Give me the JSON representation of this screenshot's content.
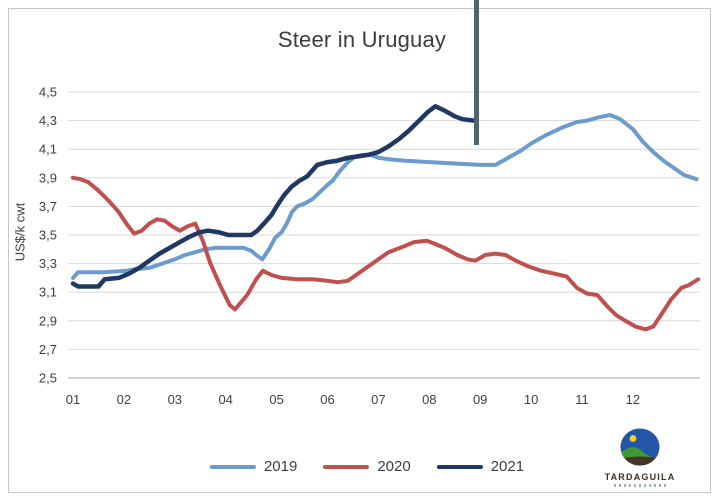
{
  "chart_data": {
    "type": "line",
    "title": "Steer in Uruguay",
    "ylabel": "US$/k cwt",
    "ylim": [
      2.5,
      4.5
    ],
    "xlim_months": [
      1,
      13.35
    ],
    "grid": true,
    "legend_position": "bottom",
    "decimal_separator": ",",
    "yticks": [
      {
        "value": 4.5,
        "label": "4,5"
      },
      {
        "value": 4.3,
        "label": "4,3"
      },
      {
        "value": 4.1,
        "label": "4,1"
      },
      {
        "value": 3.9,
        "label": "3,9"
      },
      {
        "value": 3.7,
        "label": "3,7"
      },
      {
        "value": 3.5,
        "label": "3,5"
      },
      {
        "value": 3.3,
        "label": "3,3"
      },
      {
        "value": 3.1,
        "label": "3,1"
      },
      {
        "value": 2.9,
        "label": "2,9"
      },
      {
        "value": 2.7,
        "label": "2,7"
      },
      {
        "value": 2.5,
        "label": "2,5"
      }
    ],
    "xticks": [
      "01",
      "02",
      "03",
      "04",
      "05",
      "06",
      "07",
      "08",
      "09",
      "10",
      "11",
      "12"
    ],
    "series": [
      {
        "name": "2019",
        "color": "#6c9bce",
        "width": 4,
        "points": [
          [
            1.0,
            3.2
          ],
          [
            1.1,
            3.24
          ],
          [
            1.6,
            3.24
          ],
          [
            2.05,
            3.25
          ],
          [
            2.2,
            3.26
          ],
          [
            2.5,
            3.27
          ],
          [
            2.75,
            3.3
          ],
          [
            3.0,
            3.33
          ],
          [
            3.2,
            3.36
          ],
          [
            3.4,
            3.38
          ],
          [
            3.6,
            3.4
          ],
          [
            3.8,
            3.41
          ],
          [
            4.1,
            3.41
          ],
          [
            4.35,
            3.41
          ],
          [
            4.5,
            3.39
          ],
          [
            4.6,
            3.36
          ],
          [
            4.72,
            3.33
          ],
          [
            4.85,
            3.4
          ],
          [
            4.97,
            3.48
          ],
          [
            5.1,
            3.52
          ],
          [
            5.2,
            3.58
          ],
          [
            5.3,
            3.66
          ],
          [
            5.4,
            3.7
          ],
          [
            5.55,
            3.72
          ],
          [
            5.7,
            3.75
          ],
          [
            5.85,
            3.8
          ],
          [
            6.0,
            3.85
          ],
          [
            6.1,
            3.88
          ],
          [
            6.25,
            3.95
          ],
          [
            6.4,
            4.01
          ],
          [
            6.55,
            4.05
          ],
          [
            6.7,
            4.06
          ],
          [
            6.85,
            4.06
          ],
          [
            7.0,
            4.04
          ],
          [
            7.2,
            4.03
          ],
          [
            7.5,
            4.02
          ],
          [
            8.0,
            4.01
          ],
          [
            8.5,
            4.0
          ],
          [
            9.0,
            3.99
          ],
          [
            9.3,
            3.99
          ],
          [
            9.5,
            4.03
          ],
          [
            9.8,
            4.09
          ],
          [
            10.0,
            4.14
          ],
          [
            10.3,
            4.2
          ],
          [
            10.6,
            4.25
          ],
          [
            10.9,
            4.29
          ],
          [
            11.1,
            4.3
          ],
          [
            11.3,
            4.32
          ],
          [
            11.55,
            4.34
          ],
          [
            11.75,
            4.31
          ],
          [
            12.0,
            4.24
          ],
          [
            12.2,
            4.15
          ],
          [
            12.4,
            4.08
          ],
          [
            12.6,
            4.02
          ],
          [
            12.8,
            3.97
          ],
          [
            13.0,
            3.92
          ],
          [
            13.25,
            3.89
          ]
        ]
      },
      {
        "name": "2020",
        "color": "#c0504d",
        "width": 4,
        "points": [
          [
            1.0,
            3.9
          ],
          [
            1.15,
            3.89
          ],
          [
            1.3,
            3.87
          ],
          [
            1.5,
            3.81
          ],
          [
            1.7,
            3.74
          ],
          [
            1.9,
            3.66
          ],
          [
            2.05,
            3.58
          ],
          [
            2.2,
            3.51
          ],
          [
            2.35,
            3.53
          ],
          [
            2.5,
            3.58
          ],
          [
            2.65,
            3.61
          ],
          [
            2.8,
            3.6
          ],
          [
            2.95,
            3.56
          ],
          [
            3.1,
            3.53
          ],
          [
            3.25,
            3.56
          ],
          [
            3.4,
            3.58
          ],
          [
            3.55,
            3.46
          ],
          [
            3.7,
            3.3
          ],
          [
            3.9,
            3.14
          ],
          [
            4.08,
            3.01
          ],
          [
            4.18,
            2.98
          ],
          [
            4.42,
            3.08
          ],
          [
            4.6,
            3.19
          ],
          [
            4.73,
            3.25
          ],
          [
            4.9,
            3.22
          ],
          [
            5.1,
            3.2
          ],
          [
            5.4,
            3.19
          ],
          [
            5.7,
            3.19
          ],
          [
            6.0,
            3.18
          ],
          [
            6.2,
            3.17
          ],
          [
            6.4,
            3.18
          ],
          [
            6.6,
            3.23
          ],
          [
            6.8,
            3.28
          ],
          [
            7.0,
            3.33
          ],
          [
            7.2,
            3.38
          ],
          [
            7.5,
            3.42
          ],
          [
            7.7,
            3.45
          ],
          [
            7.95,
            3.46
          ],
          [
            8.1,
            3.44
          ],
          [
            8.3,
            3.41
          ],
          [
            8.55,
            3.36
          ],
          [
            8.75,
            3.33
          ],
          [
            8.9,
            3.32
          ],
          [
            9.1,
            3.36
          ],
          [
            9.3,
            3.37
          ],
          [
            9.5,
            3.36
          ],
          [
            9.7,
            3.32
          ],
          [
            9.95,
            3.28
          ],
          [
            10.2,
            3.25
          ],
          [
            10.45,
            3.23
          ],
          [
            10.7,
            3.21
          ],
          [
            10.9,
            3.13
          ],
          [
            11.1,
            3.09
          ],
          [
            11.3,
            3.08
          ],
          [
            11.5,
            3.0
          ],
          [
            11.67,
            2.94
          ],
          [
            11.85,
            2.9
          ],
          [
            12.05,
            2.86
          ],
          [
            12.25,
            2.84
          ],
          [
            12.4,
            2.86
          ],
          [
            12.55,
            2.94
          ],
          [
            12.75,
            3.05
          ],
          [
            12.95,
            3.13
          ],
          [
            13.1,
            3.15
          ],
          [
            13.28,
            3.19
          ]
        ]
      },
      {
        "name": "2021",
        "color": "#1f3864",
        "width": 4.5,
        "points": [
          [
            1.0,
            3.16
          ],
          [
            1.1,
            3.14
          ],
          [
            1.5,
            3.14
          ],
          [
            1.62,
            3.19
          ],
          [
            1.9,
            3.2
          ],
          [
            2.1,
            3.23
          ],
          [
            2.3,
            3.27
          ],
          [
            2.5,
            3.32
          ],
          [
            2.7,
            3.37
          ],
          [
            2.9,
            3.41
          ],
          [
            3.1,
            3.45
          ],
          [
            3.3,
            3.49
          ],
          [
            3.5,
            3.52
          ],
          [
            3.65,
            3.53
          ],
          [
            3.85,
            3.52
          ],
          [
            4.05,
            3.5
          ],
          [
            4.5,
            3.5
          ],
          [
            4.62,
            3.53
          ],
          [
            4.75,
            3.58
          ],
          [
            4.9,
            3.64
          ],
          [
            5.0,
            3.7
          ],
          [
            5.15,
            3.78
          ],
          [
            5.3,
            3.84
          ],
          [
            5.45,
            3.88
          ],
          [
            5.6,
            3.91
          ],
          [
            5.7,
            3.95
          ],
          [
            5.8,
            3.99
          ],
          [
            6.0,
            4.01
          ],
          [
            6.2,
            4.02
          ],
          [
            6.4,
            4.04
          ],
          [
            6.6,
            4.05
          ],
          [
            6.8,
            4.06
          ],
          [
            7.0,
            4.08
          ],
          [
            7.2,
            4.12
          ],
          [
            7.4,
            4.17
          ],
          [
            7.6,
            4.23
          ],
          [
            7.8,
            4.3
          ],
          [
            7.97,
            4.36
          ],
          [
            8.12,
            4.4
          ],
          [
            8.3,
            4.37
          ],
          [
            8.5,
            4.33
          ],
          [
            8.65,
            4.31
          ],
          [
            8.88,
            4.3
          ]
        ]
      }
    ]
  },
  "annotation": {
    "type": "vertical-line",
    "x_month": 8.93,
    "color": "#4e6470"
  },
  "logo": {
    "brand": "TARDAGUILA"
  },
  "colors": {
    "gridline": "#d9d9d9",
    "axis_line": "#b7b7b7",
    "tick_text": "#404040",
    "title_text": "#3d3d3d",
    "frame_border": "#c7c7c7"
  }
}
